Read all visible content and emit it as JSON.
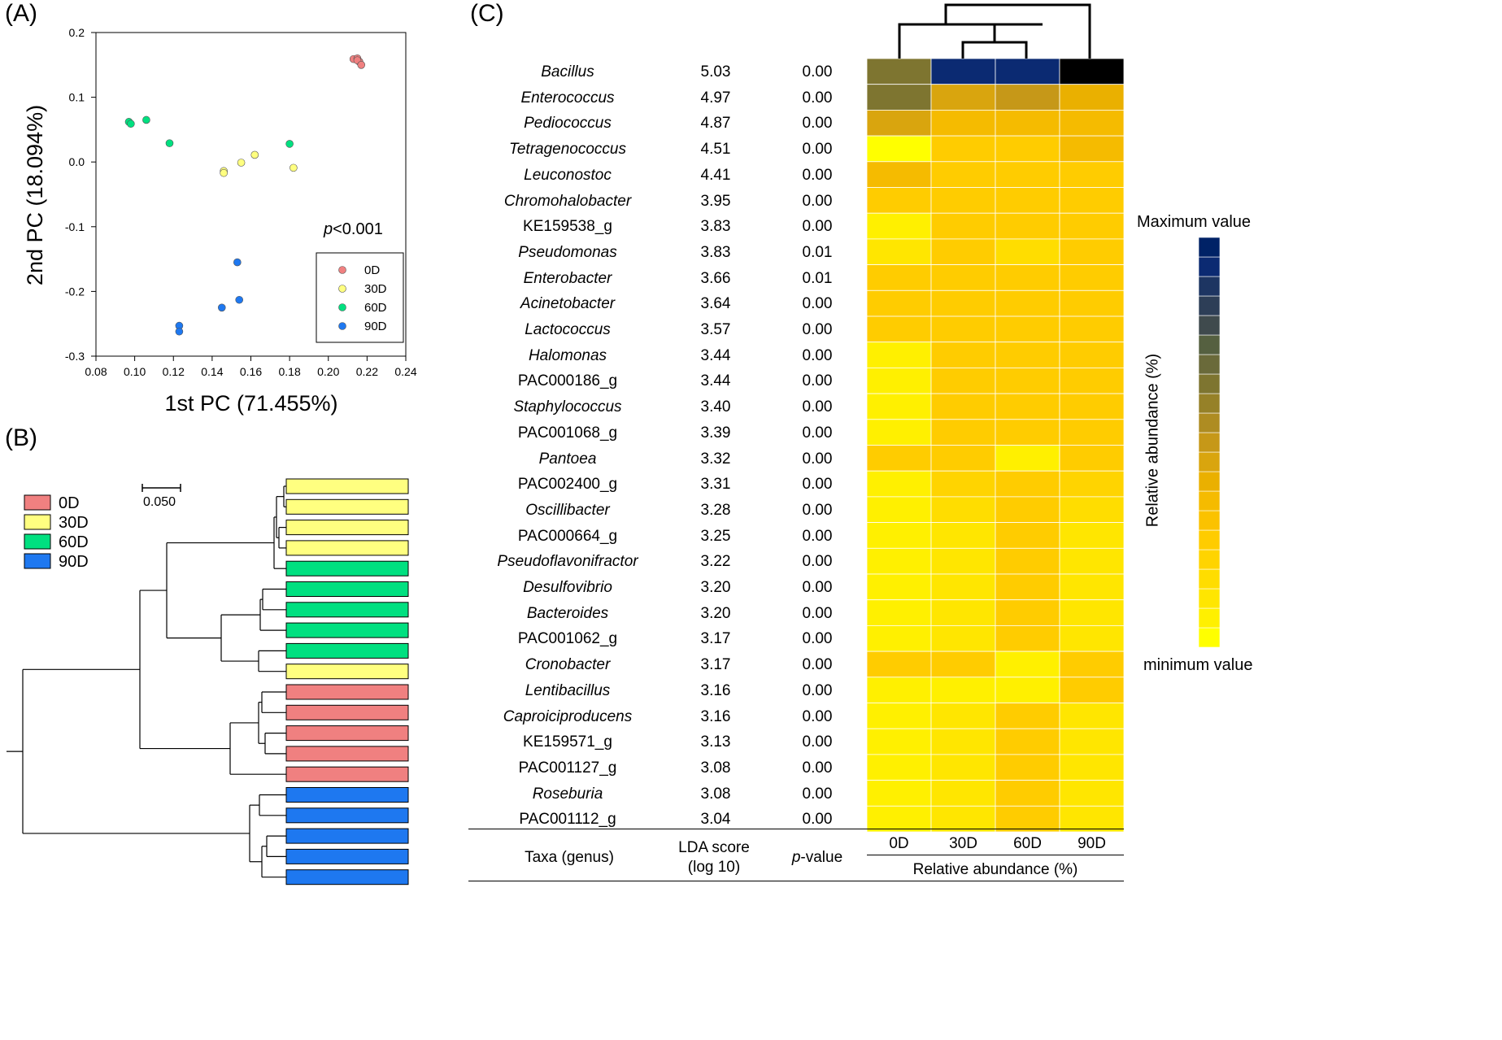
{
  "panels": {
    "a": "(A)",
    "b": "(B)",
    "c": "(C)"
  },
  "pca": {
    "xlabel": "1st PC (71.455%)",
    "ylabel": "2nd PC (18.094%)",
    "xticks": [
      "0.08",
      "0.10",
      "0.12",
      "0.14",
      "0.16",
      "0.18",
      "0.20",
      "0.22",
      "0.24"
    ],
    "yticks": [
      "0.2",
      "0.1",
      "0.0",
      "-0.1",
      "-0.2",
      "-0.3"
    ],
    "p_italic": "p",
    "p_rest": "<0.001",
    "legend": [
      "0D",
      "30D",
      "60D",
      "90D"
    ]
  },
  "tree": {
    "scale_label": "0.050",
    "legend": [
      "0D",
      "30D",
      "60D",
      "90D"
    ]
  },
  "table": {
    "col_taxa": "Taxa (genus)",
    "col_lda_1": "LDA score",
    "col_lda_2": "(log 10)",
    "col_p_italic": "p",
    "col_p_rest": "-value",
    "groups": [
      "0D",
      "30D",
      "60D",
      "90D"
    ],
    "rel_abundance": "Relative abundance (%)"
  },
  "scale": {
    "max_label": "Maximum value",
    "min_label": "minimum value",
    "axis_label": "Relative abundance (%)"
  },
  "colors": {
    "d0": "#f08080",
    "d30": "#ffff80",
    "d60": "#00e080",
    "d90": "#1e78f0"
  },
  "chart_data": [
    {
      "type": "scatter",
      "title": "(A)",
      "xlabel": "1st PC (71.455%)",
      "ylabel": "2nd PC (18.094%)",
      "xlim": [
        0.08,
        0.24
      ],
      "ylim": [
        -0.3,
        0.2
      ],
      "series": [
        {
          "name": "0D",
          "color": "#f08080",
          "points": [
            [
              0.213,
              0.159
            ],
            [
              0.215,
              0.16
            ],
            [
              0.216,
              0.155
            ],
            [
              0.215,
              0.157
            ],
            [
              0.217,
              0.15
            ]
          ]
        },
        {
          "name": "30D",
          "color": "#ffff80",
          "points": [
            [
              0.146,
              -0.014
            ],
            [
              0.146,
              -0.017
            ],
            [
              0.155,
              -0.001
            ],
            [
              0.162,
              0.011
            ],
            [
              0.182,
              -0.009
            ]
          ]
        },
        {
          "name": "60D",
          "color": "#00e080",
          "points": [
            [
              0.097,
              0.062
            ],
            [
              0.098,
              0.059
            ],
            [
              0.106,
              0.065
            ],
            [
              0.118,
              0.029
            ],
            [
              0.18,
              0.028
            ]
          ]
        },
        {
          "name": "90D",
          "color": "#1e78f0",
          "points": [
            [
              0.153,
              -0.155
            ],
            [
              0.154,
              -0.213
            ],
            [
              0.145,
              -0.225
            ],
            [
              0.123,
              -0.253
            ],
            [
              0.123,
              -0.262
            ]
          ]
        }
      ]
    },
    {
      "type": "dendrogram",
      "title": "(B)",
      "leaves": [
        "30D",
        "30D",
        "30D",
        "30D",
        "60D",
        "60D",
        "60D",
        "60D",
        "60D",
        "30D",
        "0D",
        "0D",
        "0D",
        "0D",
        "0D",
        "90D",
        "90D",
        "90D",
        "90D",
        "90D"
      ]
    },
    {
      "type": "heatmap",
      "title": "(C)",
      "columns": [
        "0D",
        "30D",
        "60D",
        "90D"
      ],
      "rows": [
        {
          "taxon": "Bacillus",
          "italic": true,
          "lda": "5.03",
          "p": "0.00",
          "levels": [
            13,
            19,
            19,
            23
          ]
        },
        {
          "taxon": "Enterococcus",
          "italic": true,
          "lda": "4.97",
          "p": "0.00",
          "levels": [
            13,
            9,
            10,
            8
          ]
        },
        {
          "taxon": "Pediococcus",
          "italic": true,
          "lda": "4.87",
          "p": "0.00",
          "levels": [
            9,
            7,
            7,
            7
          ]
        },
        {
          "taxon": "Tetragenococcus",
          "italic": true,
          "lda": "4.51",
          "p": "0.00",
          "levels": [
            0,
            5,
            5,
            7
          ]
        },
        {
          "taxon": "Leuconostoc",
          "italic": true,
          "lda": "4.41",
          "p": "0.00",
          "levels": [
            7,
            5,
            5,
            5
          ]
        },
        {
          "taxon": "Chromohalobacter",
          "italic": true,
          "lda": "3.95",
          "p": "0.00",
          "levels": [
            5,
            5,
            5,
            5
          ]
        },
        {
          "taxon": "KE159538_g",
          "italic": false,
          "lda": "3.83",
          "p": "0.00",
          "levels": [
            1,
            5,
            5,
            5
          ]
        },
        {
          "taxon": "Pseudomonas",
          "italic": true,
          "lda": "3.83",
          "p": "0.01",
          "levels": [
            2,
            5,
            3,
            5
          ]
        },
        {
          "taxon": "Enterobacter",
          "italic": true,
          "lda": "3.66",
          "p": "0.01",
          "levels": [
            5,
            5,
            5,
            5
          ]
        },
        {
          "taxon": "Acinetobacter",
          "italic": true,
          "lda": "3.64",
          "p": "0.00",
          "levels": [
            5,
            5,
            5,
            5
          ]
        },
        {
          "taxon": "Lactococcus",
          "italic": true,
          "lda": "3.57",
          "p": "0.00",
          "levels": [
            5,
            5,
            5,
            5
          ]
        },
        {
          "taxon": "Halomonas",
          "italic": true,
          "lda": "3.44",
          "p": "0.00",
          "levels": [
            1,
            5,
            5,
            5
          ]
        },
        {
          "taxon": "PAC000186_g",
          "italic": false,
          "lda": "3.44",
          "p": "0.00",
          "levels": [
            1,
            5,
            5,
            5
          ]
        },
        {
          "taxon": "Staphylococcus",
          "italic": true,
          "lda": "3.40",
          "p": "0.00",
          "levels": [
            1,
            5,
            5,
            5
          ]
        },
        {
          "taxon": "PAC001068_g",
          "italic": false,
          "lda": "3.39",
          "p": "0.00",
          "levels": [
            1,
            5,
            5,
            5
          ]
        },
        {
          "taxon": "Pantoea",
          "italic": true,
          "lda": "3.32",
          "p": "0.00",
          "levels": [
            5,
            5,
            1,
            5
          ]
        },
        {
          "taxon": "PAC002400_g",
          "italic": false,
          "lda": "3.31",
          "p": "0.00",
          "levels": [
            1,
            4,
            5,
            4
          ]
        },
        {
          "taxon": "Oscillibacter",
          "italic": true,
          "lda": "3.28",
          "p": "0.00",
          "levels": [
            1,
            3,
            5,
            3
          ]
        },
        {
          "taxon": "PAC000664_g",
          "italic": false,
          "lda": "3.25",
          "p": "0.00",
          "levels": [
            1,
            2,
            5,
            2
          ]
        },
        {
          "taxon": "Pseudoflavonifractor",
          "italic": true,
          "lda": "3.22",
          "p": "0.00",
          "levels": [
            1,
            2,
            5,
            2
          ]
        },
        {
          "taxon": "Desulfovibrio",
          "italic": true,
          "lda": "3.20",
          "p": "0.00",
          "levels": [
            1,
            2,
            5,
            2
          ]
        },
        {
          "taxon": "Bacteroides",
          "italic": true,
          "lda": "3.20",
          "p": "0.00",
          "levels": [
            1,
            2,
            5,
            2
          ]
        },
        {
          "taxon": "PAC001062_g",
          "italic": false,
          "lda": "3.17",
          "p": "0.00",
          "levels": [
            1,
            2,
            5,
            2
          ]
        },
        {
          "taxon": "Cronobacter",
          "italic": true,
          "lda": "3.17",
          "p": "0.00",
          "levels": [
            5,
            5,
            1,
            5
          ]
        },
        {
          "taxon": "Lentibacillus",
          "italic": true,
          "lda": "3.16",
          "p": "0.00",
          "levels": [
            1,
            1,
            1,
            5
          ]
        },
        {
          "taxon": "Caproiciproducens",
          "italic": true,
          "lda": "3.16",
          "p": "0.00",
          "levels": [
            1,
            2,
            5,
            2
          ]
        },
        {
          "taxon": "KE159571_g",
          "italic": false,
          "lda": "3.13",
          "p": "0.00",
          "levels": [
            1,
            2,
            5,
            2
          ]
        },
        {
          "taxon": "PAC001127_g",
          "italic": false,
          "lda": "3.08",
          "p": "0.00",
          "levels": [
            1,
            2,
            5,
            2
          ]
        },
        {
          "taxon": "Roseburia",
          "italic": true,
          "lda": "3.08",
          "p": "0.00",
          "levels": [
            1,
            2,
            5,
            2
          ]
        },
        {
          "taxon": "PAC001112_g",
          "italic": false,
          "lda": "3.04",
          "p": "0.00",
          "levels": [
            1,
            2,
            5,
            2
          ]
        }
      ],
      "scale_colors": [
        "#ffff00",
        "#fff000",
        "#ffe600",
        "#ffdd00",
        "#ffd400",
        "#ffcc00",
        "#fbc200",
        "#f5bb00",
        "#eab000",
        "#d9a50e",
        "#c69818",
        "#ae8c22",
        "#968128",
        "#7e7530",
        "#6a6a3a",
        "#556040",
        "#3f4a4d",
        "#2d3e57",
        "#1d3562",
        "#0b2a72",
        "#002266"
      ]
    }
  ]
}
